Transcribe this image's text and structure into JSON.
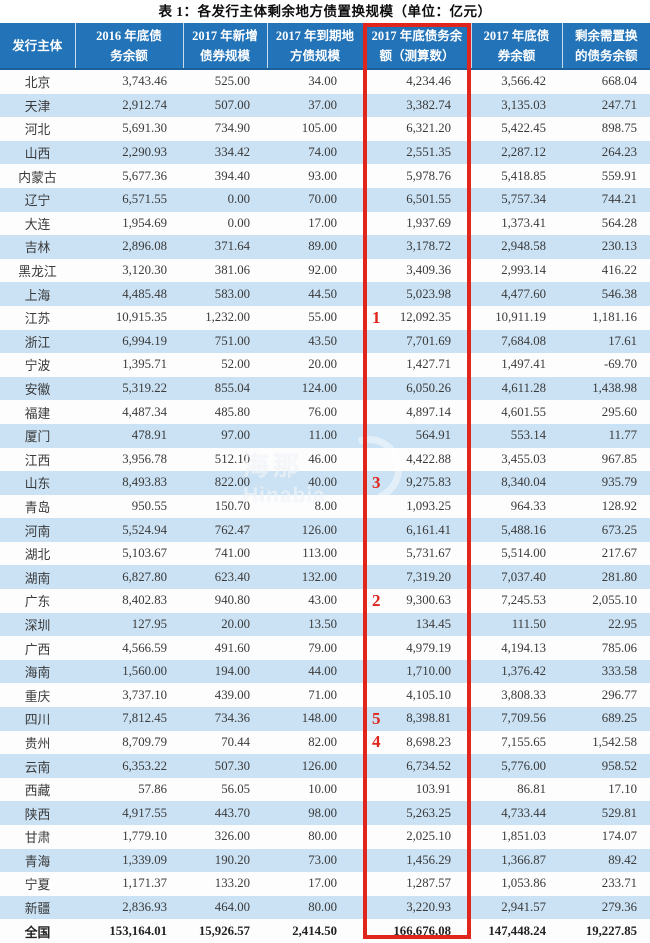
{
  "title": "表 1：各发行主体剩余地方债置换规模（单位：亿元）",
  "watermark": {
    "line1": "海那",
    "line2": "Hinabia"
  },
  "colors": {
    "header_blue": "#2273b8",
    "header_edge": "#1b5f9d",
    "row_blue": "#cbe2f4",
    "row_white": "#fdfdfd",
    "text": "#3a3a3a",
    "highlight_red": "#e0251c"
  },
  "table": {
    "columns": [
      {
        "id": "issuer",
        "label": "发行主体",
        "width": 75,
        "highlighted": false
      },
      {
        "id": "debt_2016",
        "label": "2016 年底债\n务余额",
        "width": 108,
        "highlighted": false
      },
      {
        "id": "new_bonds_2017",
        "label": "2017 年新增\n债券规模",
        "width": 84,
        "highlighted": false
      },
      {
        "id": "maturing_2017",
        "label": "2017 年到期地\n方债规模",
        "width": 96,
        "highlighted": false
      },
      {
        "id": "debt_2017_est",
        "label": "2017 年底债务余\n额（测算数）",
        "width": 108,
        "highlighted": true
      },
      {
        "id": "bonds_2017",
        "label": "2017 年底债\n券余额",
        "width": 91,
        "highlighted": false
      },
      {
        "id": "remaining_swap",
        "label": "剩余需置换\n的债务余额",
        "width": 88,
        "highlighted": false
      }
    ],
    "rows": [
      {
        "cells": [
          "北京",
          "3,743.46",
          "525.00",
          "34.00",
          "4,234.46",
          "3,566.42",
          "668.04"
        ]
      },
      {
        "cells": [
          "天津",
          "2,912.74",
          "507.00",
          "37.00",
          "3,382.74",
          "3,135.03",
          "247.71"
        ]
      },
      {
        "cells": [
          "河北",
          "5,691.30",
          "734.90",
          "105.00",
          "6,321.20",
          "5,422.45",
          "898.75"
        ]
      },
      {
        "cells": [
          "山西",
          "2,290.93",
          "334.42",
          "74.00",
          "2,551.35",
          "2,287.12",
          "264.23"
        ]
      },
      {
        "cells": [
          "内蒙古",
          "5,677.36",
          "394.40",
          "93.00",
          "5,978.76",
          "5,418.85",
          "559.91"
        ]
      },
      {
        "cells": [
          "辽宁",
          "6,571.55",
          "0.00",
          "70.00",
          "6,501.55",
          "5,757.34",
          "744.21"
        ]
      },
      {
        "cells": [
          "大连",
          "1,954.69",
          "0.00",
          "17.00",
          "1,937.69",
          "1,373.41",
          "564.28"
        ]
      },
      {
        "cells": [
          "吉林",
          "2,896.08",
          "371.64",
          "89.00",
          "3,178.72",
          "2,948.58",
          "230.13"
        ]
      },
      {
        "cells": [
          "黑龙江",
          "3,120.30",
          "381.06",
          "92.00",
          "3,409.36",
          "2,993.14",
          "416.22"
        ]
      },
      {
        "cells": [
          "上海",
          "4,485.48",
          "583.00",
          "44.50",
          "5,023.98",
          "4,477.60",
          "546.38"
        ]
      },
      {
        "cells": [
          "江苏",
          "10,915.35",
          "1,232.00",
          "55.00",
          "12,092.35",
          "10,911.19",
          "1,181.16"
        ],
        "rank": "1"
      },
      {
        "cells": [
          "浙江",
          "6,994.19",
          "751.00",
          "43.50",
          "7,701.69",
          "7,684.08",
          "17.61"
        ]
      },
      {
        "cells": [
          "宁波",
          "1,395.71",
          "52.00",
          "20.00",
          "1,427.71",
          "1,497.41",
          "-69.70"
        ]
      },
      {
        "cells": [
          "安徽",
          "5,319.22",
          "855.04",
          "124.00",
          "6,050.26",
          "4,611.28",
          "1,438.98"
        ]
      },
      {
        "cells": [
          "福建",
          "4,487.34",
          "485.80",
          "76.00",
          "4,897.14",
          "4,601.55",
          "295.60"
        ]
      },
      {
        "cells": [
          "厦门",
          "478.91",
          "97.00",
          "11.00",
          "564.91",
          "553.14",
          "11.77"
        ]
      },
      {
        "cells": [
          "江西",
          "3,956.78",
          "512.10",
          "46.00",
          "4,422.88",
          "3,455.03",
          "967.85"
        ]
      },
      {
        "cells": [
          "山东",
          "8,493.83",
          "822.00",
          "40.00",
          "9,275.83",
          "8,340.04",
          "935.79"
        ],
        "rank": "3"
      },
      {
        "cells": [
          "青岛",
          "950.55",
          "150.70",
          "8.00",
          "1,093.25",
          "964.33",
          "128.92"
        ]
      },
      {
        "cells": [
          "河南",
          "5,524.94",
          "762.47",
          "126.00",
          "6,161.41",
          "5,488.16",
          "673.25"
        ]
      },
      {
        "cells": [
          "湖北",
          "5,103.67",
          "741.00",
          "113.00",
          "5,731.67",
          "5,514.00",
          "217.67"
        ]
      },
      {
        "cells": [
          "湖南",
          "6,827.80",
          "623.40",
          "132.00",
          "7,319.20",
          "7,037.40",
          "281.80"
        ]
      },
      {
        "cells": [
          "广东",
          "8,402.83",
          "940.80",
          "43.00",
          "9,300.63",
          "7,245.53",
          "2,055.10"
        ],
        "rank": "2"
      },
      {
        "cells": [
          "深圳",
          "127.95",
          "20.00",
          "13.50",
          "134.45",
          "111.50",
          "22.95"
        ]
      },
      {
        "cells": [
          "广西",
          "4,566.59",
          "491.60",
          "79.00",
          "4,979.19",
          "4,194.13",
          "785.06"
        ]
      },
      {
        "cells": [
          "海南",
          "1,560.00",
          "194.00",
          "44.00",
          "1,710.00",
          "1,376.42",
          "333.58"
        ]
      },
      {
        "cells": [
          "重庆",
          "3,737.10",
          "439.00",
          "71.00",
          "4,105.10",
          "3,808.33",
          "296.77"
        ]
      },
      {
        "cells": [
          "四川",
          "7,812.45",
          "734.36",
          "148.00",
          "8,398.81",
          "7,709.56",
          "689.25"
        ],
        "rank": "5"
      },
      {
        "cells": [
          "贵州",
          "8,709.79",
          "70.44",
          "82.00",
          "8,698.23",
          "7,155.65",
          "1,542.58"
        ],
        "rank": "4"
      },
      {
        "cells": [
          "云南",
          "6,353.22",
          "507.30",
          "126.00",
          "6,734.52",
          "5,776.00",
          "958.52"
        ]
      },
      {
        "cells": [
          "西藏",
          "57.86",
          "56.05",
          "10.00",
          "103.91",
          "86.81",
          "17.10"
        ]
      },
      {
        "cells": [
          "陕西",
          "4,917.55",
          "443.70",
          "98.00",
          "5,263.25",
          "4,733.44",
          "529.81"
        ]
      },
      {
        "cells": [
          "甘肃",
          "1,779.10",
          "326.00",
          "80.00",
          "2,025.10",
          "1,851.03",
          "174.07"
        ]
      },
      {
        "cells": [
          "青海",
          "1,339.09",
          "190.20",
          "73.00",
          "1,456.29",
          "1,366.87",
          "89.42"
        ]
      },
      {
        "cells": [
          "宁夏",
          "1,171.37",
          "133.20",
          "17.00",
          "1,287.57",
          "1,053.86",
          "233.71"
        ]
      },
      {
        "cells": [
          "新疆",
          "2,836.93",
          "464.00",
          "80.00",
          "3,220.93",
          "2,941.57",
          "279.36"
        ]
      },
      {
        "cells": [
          "全国",
          "153,164.01",
          "15,926.57",
          "2,414.50",
          "166,676.08",
          "147,448.24",
          "19,227.85"
        ],
        "total": true
      }
    ]
  }
}
